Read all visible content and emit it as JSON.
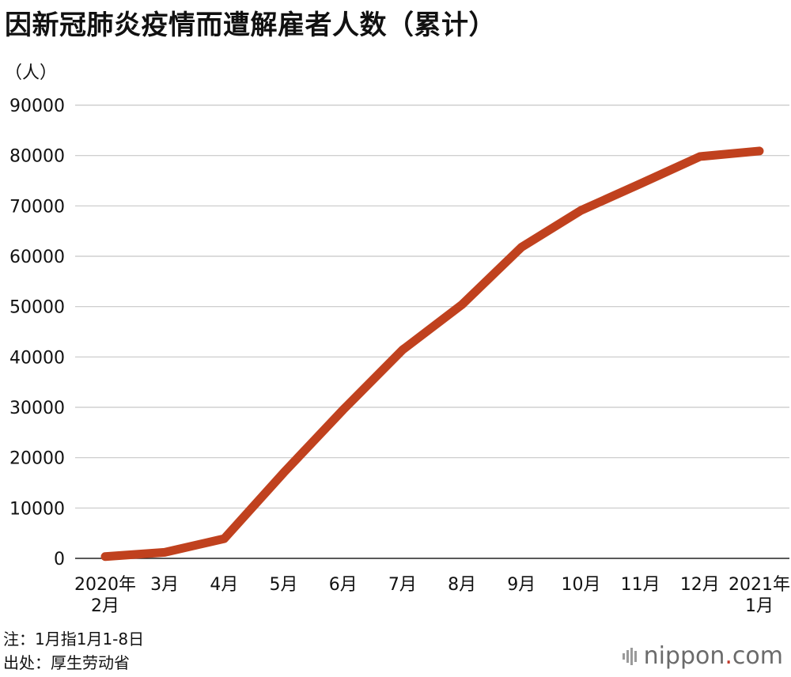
{
  "title": "因新冠肺炎疫情而遭解雇者人数（累计）",
  "unit_label": "（人）",
  "chart_data": {
    "type": "line",
    "ylim": [
      0,
      90000
    ],
    "yticks": [
      "0",
      "10000",
      "20000",
      "30000",
      "40000",
      "50000",
      "60000",
      "70000",
      "80000",
      "90000"
    ],
    "categories": [
      [
        "2020年",
        "2月"
      ],
      [
        "3月"
      ],
      [
        "4月"
      ],
      [
        "5月"
      ],
      [
        "6月"
      ],
      [
        "7月"
      ],
      [
        "8月"
      ],
      [
        "9月"
      ],
      [
        "10月"
      ],
      [
        "11月"
      ],
      [
        "12月"
      ],
      [
        "2021年",
        "1月"
      ]
    ],
    "series": [
      {
        "values": [
          350,
          1200,
          3900,
          17000,
          29500,
          41400,
          50400,
          61800,
          69100,
          74400,
          79800,
          80900
        ]
      }
    ],
    "grid": true,
    "line_color": "#c0411e"
  },
  "notes": {
    "note1": "注：1月指1月1-8日",
    "note2": "出处：厚生劳动省"
  },
  "brand": {
    "prefix": "nippon",
    "dot": ".",
    "suffix": "com",
    "dot_color": "#c0392b"
  }
}
